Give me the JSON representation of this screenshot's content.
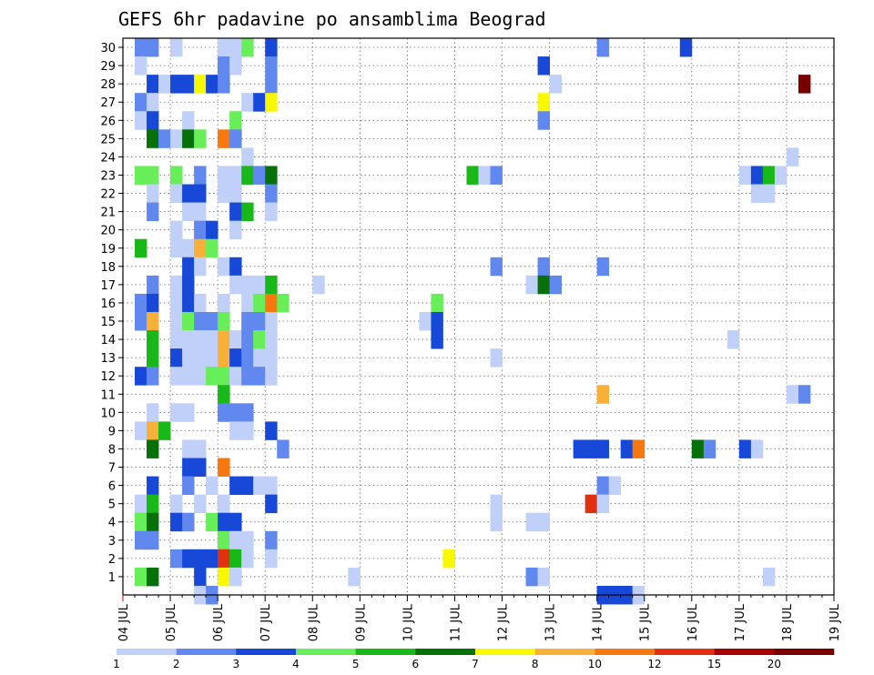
{
  "chart_data": {
    "type": "heatmap",
    "title": "GEFS 6hr padavine po ansamblima Beograd",
    "xlabel": "",
    "ylabel": "",
    "x_tick_labels": [
      "04 JUL",
      "05 JUL",
      "06 JUL",
      "07 JUL",
      "08 JUL",
      "09 JUL",
      "10 JUL",
      "11 JUL",
      "12 JUL",
      "13 JUL",
      "14 JUL",
      "15 JUL",
      "16 JUL",
      "17 JUL",
      "18 JUL",
      "19 JUL"
    ],
    "x_range_days": [
      0,
      15
    ],
    "y_tick_labels": [
      "1",
      "2",
      "3",
      "4",
      "5",
      "6",
      "7",
      "8",
      "9",
      "10",
      "11",
      "12",
      "13",
      "14",
      "15",
      "16",
      "17",
      "18",
      "19",
      "20",
      "21",
      "22",
      "23",
      "24",
      "25",
      "26",
      "27",
      "28",
      "29",
      "30"
    ],
    "y_range": [
      0,
      30
    ],
    "grid": true,
    "legend": {
      "placement": "bottom",
      "boundary_labels": [
        "1",
        "2",
        "3",
        "4",
        "5",
        "6",
        "7",
        "8",
        "10",
        "12",
        "15",
        "20"
      ],
      "colors": [
        "#c0d0f8",
        "#6088ee",
        "#1848d8",
        "#68ee58",
        "#18b818",
        "#087008",
        "#f8f800",
        "#f8b038",
        "#f87810",
        "#e03010",
        "#a80000",
        "#780000"
      ]
    },
    "cells": [
      [
        1,
        30,
        2
      ],
      [
        1,
        29,
        1
      ],
      [
        1,
        27,
        2
      ],
      [
        1,
        26,
        1
      ],
      [
        1,
        23,
        4
      ],
      [
        1,
        19,
        5
      ],
      [
        1,
        16,
        2
      ],
      [
        1,
        15,
        2
      ],
      [
        1,
        12,
        3
      ],
      [
        1,
        9,
        1
      ],
      [
        1,
        5,
        1
      ],
      [
        1,
        4,
        4
      ],
      [
        1,
        3,
        2
      ],
      [
        1,
        1,
        4
      ],
      [
        2,
        30,
        2
      ],
      [
        2,
        28,
        3
      ],
      [
        2,
        27,
        1
      ],
      [
        2,
        26,
        3
      ],
      [
        2,
        25,
        6
      ],
      [
        2,
        23,
        4
      ],
      [
        2,
        22,
        1
      ],
      [
        2,
        21,
        2
      ],
      [
        2,
        17,
        2
      ],
      [
        2,
        16,
        3
      ],
      [
        2,
        15,
        8
      ],
      [
        2,
        14,
        5
      ],
      [
        2,
        13,
        5
      ],
      [
        2,
        12,
        2
      ],
      [
        2,
        10,
        1
      ],
      [
        2,
        9,
        8
      ],
      [
        2,
        8,
        6
      ],
      [
        2,
        6,
        3
      ],
      [
        2,
        5,
        5
      ],
      [
        2,
        4,
        6
      ],
      [
        2,
        3,
        2
      ],
      [
        2,
        1,
        6
      ],
      [
        3,
        28,
        1
      ],
      [
        3,
        25,
        2
      ],
      [
        3,
        9,
        5
      ],
      [
        4,
        30,
        1
      ],
      [
        4,
        28,
        3
      ],
      [
        4,
        25,
        1
      ],
      [
        4,
        23,
        4
      ],
      [
        4,
        22,
        1
      ],
      [
        4,
        20,
        1
      ],
      [
        4,
        19,
        1
      ],
      [
        4,
        17,
        1
      ],
      [
        4,
        16,
        1
      ],
      [
        4,
        15,
        1
      ],
      [
        4,
        14,
        1
      ],
      [
        4,
        13,
        3
      ],
      [
        4,
        12,
        1
      ],
      [
        4,
        10,
        1
      ],
      [
        4,
        5,
        1
      ],
      [
        4,
        4,
        3
      ],
      [
        4,
        2,
        2
      ],
      [
        5,
        28,
        3
      ],
      [
        5,
        26,
        1
      ],
      [
        5,
        25,
        6
      ],
      [
        5,
        22,
        3
      ],
      [
        5,
        21,
        1
      ],
      [
        5,
        19,
        1
      ],
      [
        5,
        18,
        3
      ],
      [
        5,
        17,
        3
      ],
      [
        5,
        16,
        3
      ],
      [
        5,
        15,
        4
      ],
      [
        5,
        14,
        1
      ],
      [
        5,
        13,
        1
      ],
      [
        5,
        12,
        1
      ],
      [
        5,
        10,
        1
      ],
      [
        5,
        8,
        1
      ],
      [
        5,
        7,
        3
      ],
      [
        5,
        6,
        2
      ],
      [
        5,
        4,
        2
      ],
      [
        5,
        2,
        3
      ],
      [
        6,
        28,
        7
      ],
      [
        6,
        25,
        4
      ],
      [
        6,
        23,
        2
      ],
      [
        6,
        22,
        3
      ],
      [
        6,
        21,
        1
      ],
      [
        6,
        20,
        2
      ],
      [
        6,
        19,
        8
      ],
      [
        6,
        18,
        1
      ],
      [
        6,
        16,
        1
      ],
      [
        6,
        15,
        2
      ],
      [
        6,
        14,
        1
      ],
      [
        6,
        13,
        1
      ],
      [
        6,
        12,
        1
      ],
      [
        6,
        8,
        1
      ],
      [
        6,
        7,
        3
      ],
      [
        6,
        5,
        1
      ],
      [
        6,
        2,
        3
      ],
      [
        6,
        1,
        3
      ],
      [
        6,
        0,
        1
      ],
      [
        7,
        28,
        3
      ],
      [
        7,
        20,
        3
      ],
      [
        7,
        19,
        4
      ],
      [
        7,
        15,
        2
      ],
      [
        7,
        14,
        1
      ],
      [
        7,
        13,
        1
      ],
      [
        7,
        12,
        4
      ],
      [
        7,
        6,
        1
      ],
      [
        7,
        4,
        4
      ],
      [
        7,
        2,
        3
      ],
      [
        7,
        0,
        2
      ],
      [
        8,
        30,
        1
      ],
      [
        8,
        29,
        2
      ],
      [
        8,
        28,
        2
      ],
      [
        8,
        25,
        9
      ],
      [
        8,
        23,
        1
      ],
      [
        8,
        22,
        1
      ],
      [
        8,
        18,
        1
      ],
      [
        8,
        16,
        1
      ],
      [
        8,
        15,
        4
      ],
      [
        8,
        14,
        8
      ],
      [
        8,
        13,
        8
      ],
      [
        8,
        12,
        4
      ],
      [
        8,
        11,
        5
      ],
      [
        8,
        10,
        2
      ],
      [
        8,
        7,
        9
      ],
      [
        8,
        5,
        1
      ],
      [
        8,
        4,
        3
      ],
      [
        8,
        3,
        4
      ],
      [
        8,
        2,
        10
      ],
      [
        8,
        1,
        7
      ],
      [
        9,
        30,
        1
      ],
      [
        9,
        29,
        1
      ],
      [
        9,
        26,
        4
      ],
      [
        9,
        25,
        2
      ],
      [
        9,
        23,
        1
      ],
      [
        9,
        22,
        1
      ],
      [
        9,
        21,
        3
      ],
      [
        9,
        20,
        1
      ],
      [
        9,
        18,
        3
      ],
      [
        9,
        17,
        1
      ],
      [
        9,
        14,
        1
      ],
      [
        9,
        13,
        3
      ],
      [
        9,
        12,
        1
      ],
      [
        9,
        10,
        2
      ],
      [
        9,
        9,
        1
      ],
      [
        9,
        6,
        3
      ],
      [
        9,
        4,
        3
      ],
      [
        9,
        3,
        1
      ],
      [
        9,
        2,
        5
      ],
      [
        9,
        1,
        1
      ],
      [
        10,
        30,
        4
      ],
      [
        10,
        27,
        1
      ],
      [
        10,
        24,
        1
      ],
      [
        10,
        23,
        5
      ],
      [
        10,
        21,
        5
      ],
      [
        10,
        17,
        1
      ],
      [
        10,
        16,
        1
      ],
      [
        10,
        15,
        2
      ],
      [
        10,
        14,
        2
      ],
      [
        10,
        13,
        2
      ],
      [
        10,
        12,
        2
      ],
      [
        10,
        10,
        2
      ],
      [
        10,
        9,
        1
      ],
      [
        10,
        6,
        3
      ],
      [
        10,
        3,
        1
      ],
      [
        10,
        2,
        1
      ],
      [
        11,
        27,
        3
      ],
      [
        11,
        23,
        2
      ],
      [
        11,
        17,
        1
      ],
      [
        11,
        16,
        4
      ],
      [
        11,
        15,
        2
      ],
      [
        11,
        14,
        4
      ],
      [
        11,
        13,
        1
      ],
      [
        11,
        12,
        2
      ],
      [
        11,
        6,
        1
      ],
      [
        12,
        30,
        3
      ],
      [
        12,
        29,
        2
      ],
      [
        12,
        28,
        2
      ],
      [
        12,
        27,
        7
      ],
      [
        12,
        23,
        6
      ],
      [
        12,
        22,
        2
      ],
      [
        12,
        21,
        1
      ],
      [
        12,
        17,
        5
      ],
      [
        12,
        16,
        9
      ],
      [
        12,
        15,
        1
      ],
      [
        12,
        14,
        1
      ],
      [
        12,
        13,
        1
      ],
      [
        12,
        12,
        1
      ],
      [
        12,
        9,
        3
      ],
      [
        12,
        6,
        1
      ],
      [
        12,
        5,
        3
      ],
      [
        12,
        3,
        2
      ],
      [
        12,
        2,
        1
      ],
      [
        13,
        16,
        4
      ],
      [
        13,
        8,
        2
      ],
      [
        16,
        17,
        1
      ],
      [
        19,
        1,
        1
      ],
      [
        25,
        15,
        1
      ],
      [
        26,
        16,
        4
      ],
      [
        26,
        15,
        3
      ],
      [
        26,
        14,
        3
      ],
      [
        27,
        2,
        7
      ],
      [
        29,
        23,
        5
      ],
      [
        30,
        23,
        1
      ],
      [
        31,
        23,
        2
      ],
      [
        31,
        18,
        2
      ],
      [
        31,
        13,
        1
      ],
      [
        31,
        5,
        1
      ],
      [
        31,
        4,
        1
      ],
      [
        34,
        17,
        1
      ],
      [
        34,
        4,
        1
      ],
      [
        34,
        1,
        2
      ],
      [
        35,
        29,
        3
      ],
      [
        35,
        27,
        7
      ],
      [
        35,
        26,
        2
      ],
      [
        35,
        18,
        2
      ],
      [
        35,
        17,
        6
      ],
      [
        35,
        4,
        1
      ],
      [
        35,
        1,
        1
      ],
      [
        36,
        28,
        1
      ],
      [
        36,
        17,
        2
      ],
      [
        38,
        8,
        3
      ],
      [
        39,
        5,
        10
      ],
      [
        39,
        8,
        3
      ],
      [
        40,
        30,
        2
      ],
      [
        40,
        18,
        2
      ],
      [
        40,
        11,
        8
      ],
      [
        40,
        8,
        3
      ],
      [
        40,
        6,
        2
      ],
      [
        40,
        5,
        1
      ],
      [
        40,
        0,
        3
      ],
      [
        41,
        6,
        1
      ],
      [
        41,
        0,
        3
      ],
      [
        42,
        8,
        3
      ],
      [
        42,
        0,
        3
      ],
      [
        43,
        8,
        9
      ],
      [
        43,
        0,
        1
      ],
      [
        47,
        30,
        3
      ],
      [
        48,
        8,
        6
      ],
      [
        49,
        8,
        2
      ],
      [
        51,
        14,
        1
      ],
      [
        52,
        23,
        1
      ],
      [
        52,
        8,
        3
      ],
      [
        53,
        23,
        3
      ],
      [
        53,
        22,
        1
      ],
      [
        53,
        8,
        1
      ],
      [
        54,
        23,
        5
      ],
      [
        54,
        22,
        1
      ],
      [
        54,
        1,
        1
      ],
      [
        55,
        23,
        1
      ],
      [
        56,
        24,
        1
      ],
      [
        56,
        11,
        1
      ],
      [
        57,
        28,
        12
      ],
      [
        57,
        11,
        2
      ]
    ]
  }
}
